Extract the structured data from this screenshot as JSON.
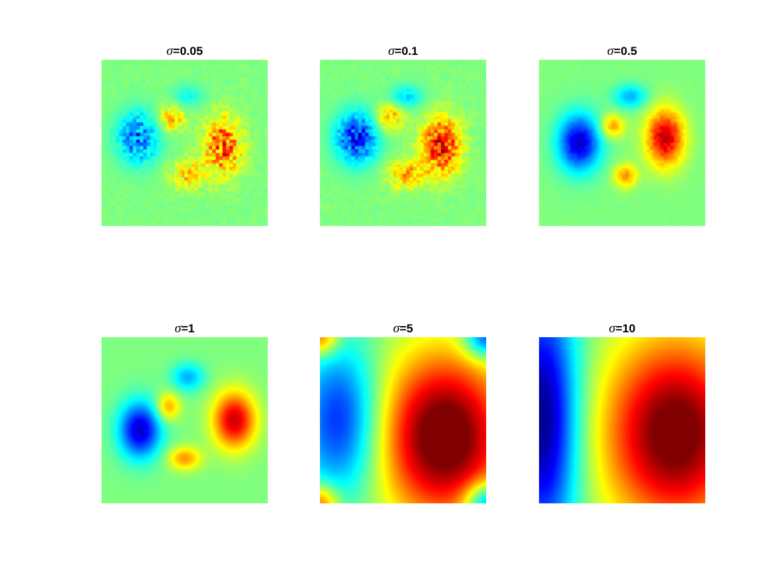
{
  "chart_data": [
    {
      "type": "heatmap",
      "title_symbol": "σ",
      "title_value": "=0.05",
      "colormap": "jet",
      "features": [
        {
          "cx": 0.22,
          "cy": 0.47,
          "sx": 0.09,
          "sy": 0.11,
          "a": -0.55
        },
        {
          "cx": 0.73,
          "cy": 0.52,
          "sx": 0.08,
          "sy": 0.12,
          "a": 0.6
        },
        {
          "cx": 0.42,
          "cy": 0.35,
          "sx": 0.06,
          "sy": 0.06,
          "a": 0.35
        },
        {
          "cx": 0.52,
          "cy": 0.69,
          "sx": 0.08,
          "sy": 0.06,
          "a": 0.32
        },
        {
          "cx": 0.52,
          "cy": 0.22,
          "sx": 0.07,
          "sy": 0.05,
          "a": -0.22
        }
      ],
      "noise": 0.55
    },
    {
      "type": "heatmap",
      "title_symbol": "σ",
      "title_value": "=0.1",
      "colormap": "jet",
      "features": [
        {
          "cx": 0.22,
          "cy": 0.47,
          "sx": 0.09,
          "sy": 0.11,
          "a": -0.7
        },
        {
          "cx": 0.73,
          "cy": 0.52,
          "sx": 0.08,
          "sy": 0.12,
          "a": 0.75
        },
        {
          "cx": 0.42,
          "cy": 0.35,
          "sx": 0.06,
          "sy": 0.06,
          "a": 0.4
        },
        {
          "cx": 0.52,
          "cy": 0.69,
          "sx": 0.08,
          "sy": 0.06,
          "a": 0.4
        },
        {
          "cx": 0.52,
          "cy": 0.22,
          "sx": 0.07,
          "sy": 0.05,
          "a": -0.3
        }
      ],
      "noise": 0.4
    },
    {
      "type": "heatmap",
      "title_symbol": "σ",
      "title_value": "=0.5",
      "colormap": "jet",
      "features": [
        {
          "cx": 0.24,
          "cy": 0.5,
          "sx": 0.09,
          "sy": 0.12,
          "a": -0.85
        },
        {
          "cx": 0.76,
          "cy": 0.47,
          "sx": 0.08,
          "sy": 0.12,
          "a": 0.85
        },
        {
          "cx": 0.44,
          "cy": 0.4,
          "sx": 0.05,
          "sy": 0.05,
          "a": 0.45
        },
        {
          "cx": 0.52,
          "cy": 0.7,
          "sx": 0.05,
          "sy": 0.05,
          "a": 0.45
        },
        {
          "cx": 0.55,
          "cy": 0.22,
          "sx": 0.07,
          "sy": 0.05,
          "a": -0.4
        }
      ],
      "noise": 0.08
    },
    {
      "type": "heatmap",
      "title_symbol": "σ",
      "title_value": "=1",
      "colormap": "jet",
      "features": [
        {
          "cx": 0.23,
          "cy": 0.56,
          "sx": 0.09,
          "sy": 0.12,
          "a": -0.85
        },
        {
          "cx": 0.8,
          "cy": 0.5,
          "sx": 0.09,
          "sy": 0.12,
          "a": 0.85
        },
        {
          "cx": 0.4,
          "cy": 0.42,
          "sx": 0.05,
          "sy": 0.06,
          "a": 0.45
        },
        {
          "cx": 0.5,
          "cy": 0.73,
          "sx": 0.07,
          "sy": 0.05,
          "a": 0.45
        },
        {
          "cx": 0.52,
          "cy": 0.24,
          "sx": 0.07,
          "sy": 0.06,
          "a": -0.4
        }
      ],
      "noise": 0.0
    },
    {
      "type": "heatmap",
      "title_symbol": "σ",
      "title_value": "=5",
      "colormap": "jet",
      "features": [
        {
          "cx": 0.75,
          "cy": 0.6,
          "sx": 0.27,
          "sy": 0.35,
          "a": 1.15
        },
        {
          "cx": 0.12,
          "cy": 0.5,
          "sx": 0.17,
          "sy": 0.32,
          "a": -0.7
        },
        {
          "cx": 0.0,
          "cy": 0.0,
          "sx": 0.08,
          "sy": 0.08,
          "a": 0.6
        },
        {
          "cx": 0.0,
          "cy": 1.0,
          "sx": 0.08,
          "sy": 0.08,
          "a": 0.6
        },
        {
          "cx": 1.0,
          "cy": 0.0,
          "sx": 0.09,
          "sy": 0.09,
          "a": -0.7
        },
        {
          "cx": 1.0,
          "cy": 1.0,
          "sx": 0.09,
          "sy": 0.09,
          "a": -0.7
        }
      ],
      "noise": 0.0
    },
    {
      "type": "heatmap",
      "title_symbol": "σ",
      "title_value": "=10",
      "colormap": "jet",
      "features": [
        {
          "cx": 0.82,
          "cy": 0.58,
          "sx": 0.3,
          "sy": 0.4,
          "a": 1.1
        },
        {
          "cx": 0.02,
          "cy": 0.5,
          "sx": 0.15,
          "sy": 0.55,
          "a": -1.0
        }
      ],
      "noise": 0.0
    }
  ]
}
